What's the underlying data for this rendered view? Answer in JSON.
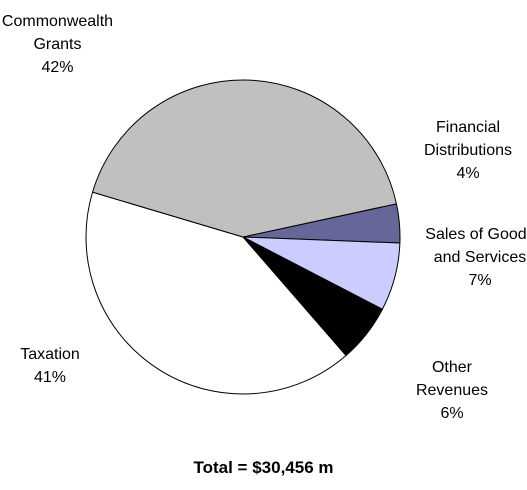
{
  "chart_data": {
    "type": "pie",
    "title": "Total = $30,456 m",
    "categories": [
      "Financial Distributions",
      "Sales of Goods and Services",
      "Other Revenues",
      "Taxation",
      "Commonwealth Grants"
    ],
    "values": [
      4,
      7,
      6,
      41,
      42
    ],
    "value_labels": [
      "4%",
      "7%",
      "6%",
      "41%",
      "42%"
    ],
    "colors": [
      "#666699",
      "#ccccff",
      "#000000",
      "#ffffff",
      "#c0c0c0"
    ]
  }
}
